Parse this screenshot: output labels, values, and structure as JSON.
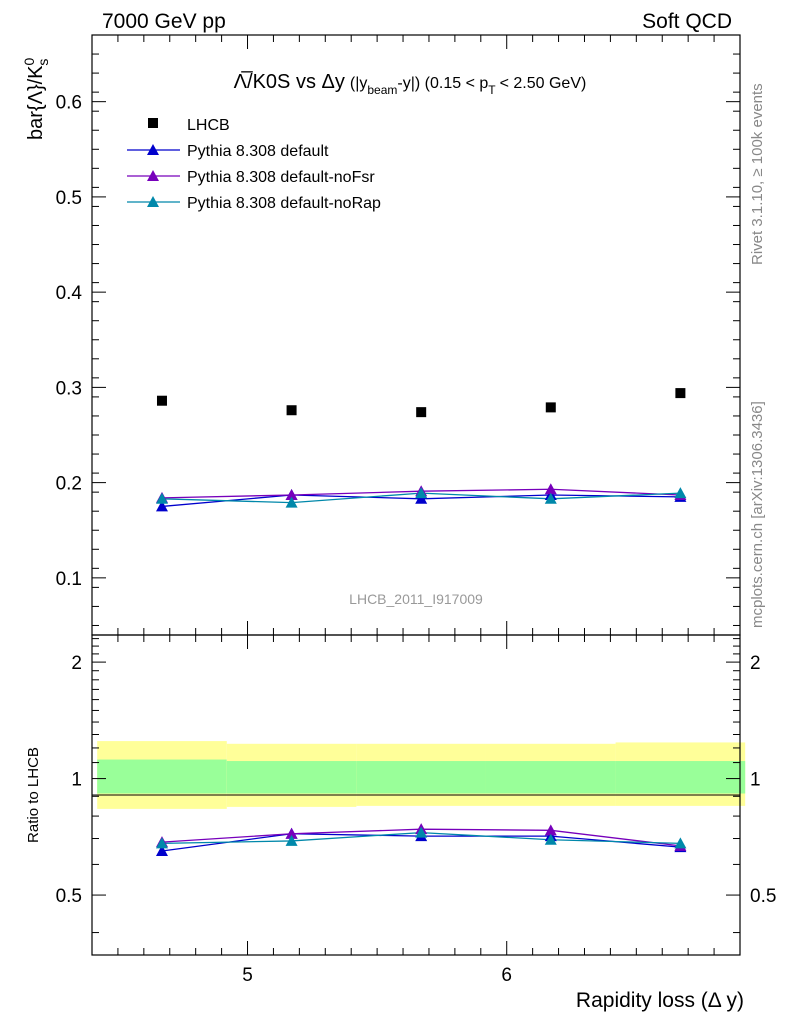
{
  "header": {
    "left": "7000 GeV pp",
    "right": "Soft QCD"
  },
  "side_text": {
    "rivet": "Rivet 3.1.10, ≥ 100k events",
    "mcplots": "mcplots.cern.ch [arXiv:1306.3436]"
  },
  "colors": {
    "data": "#000000",
    "default": "#0000cc",
    "noFsr": "#7700bb",
    "noRap": "#0088aa",
    "band_inner": "#99ff99",
    "band_outer": "#ffff99"
  },
  "chart_data": [
    {
      "type": "scatter",
      "title_main": "Λ̅/K0S vs Δy",
      "title_tail": "(|y",
      "title_sub1": "beam",
      "title_mid": "-y|) (0.15 < p",
      "title_sub2": "T",
      "title_end": "< 2.50 GeV)",
      "ylabel": "bar{Λ}/K",
      "ylabel_sup": "0",
      "ylabel_sub": "s",
      "xlim": [
        4.4,
        6.9
      ],
      "ylim": [
        0.04,
        0.67
      ],
      "yticks": [
        0.1,
        0.2,
        0.3,
        0.4,
        0.5,
        0.6
      ],
      "ytick_labels": [
        "0.1",
        "0.2",
        "0.3",
        "0.4",
        "0.5",
        "0.6"
      ],
      "watermark": "LHCB_2011_I917009",
      "legend_position": "top-left",
      "x": [
        4.67,
        5.17,
        5.67,
        6.17,
        6.67
      ],
      "series": [
        {
          "name": "LHCB",
          "kind": "data",
          "values": [
            0.286,
            0.276,
            0.274,
            0.279,
            0.294
          ]
        },
        {
          "name": "Pythia 8.308 default",
          "kind": "mc",
          "values": [
            0.175,
            0.187,
            0.183,
            0.187,
            0.185
          ]
        },
        {
          "name": "Pythia 8.308 default-noFsr",
          "kind": "mc",
          "values": [
            0.184,
            0.187,
            0.191,
            0.193,
            0.187
          ]
        },
        {
          "name": "Pythia 8.308 default-noRap",
          "kind": "mc",
          "values": [
            0.183,
            0.179,
            0.189,
            0.183,
            0.189
          ]
        }
      ]
    },
    {
      "type": "line",
      "ylabel": "Ratio to LHCB",
      "xlabel": "Rapidity loss (Δ y)",
      "ylim": [
        0.35,
        2.35
      ],
      "log_y": true,
      "yticks": [
        0.5,
        1,
        2
      ],
      "ytick_labels": [
        "0.5",
        "1",
        "2"
      ],
      "xticks": [
        5,
        6
      ],
      "xtick_labels": [
        "5",
        "6"
      ],
      "bands": [
        {
          "x": [
            4.42,
            4.92
          ],
          "inner": [
            0.915,
            1.12
          ],
          "outer": [
            0.835,
            1.25
          ]
        },
        {
          "x": [
            4.92,
            5.42
          ],
          "inner": [
            0.915,
            1.11
          ],
          "outer": [
            0.845,
            1.23
          ]
        },
        {
          "x": [
            5.42,
            5.92
          ],
          "inner": [
            0.915,
            1.11
          ],
          "outer": [
            0.85,
            1.23
          ]
        },
        {
          "x": [
            5.92,
            6.42
          ],
          "inner": [
            0.915,
            1.11
          ],
          "outer": [
            0.85,
            1.23
          ]
        },
        {
          "x": [
            6.42,
            6.92
          ],
          "inner": [
            0.915,
            1.11
          ],
          "outer": [
            0.85,
            1.24
          ]
        }
      ],
      "series": [
        {
          "name": "Pythia 8.308 default",
          "values": [
            0.65,
            0.72,
            0.71,
            0.71,
            0.665
          ]
        },
        {
          "name": "Pythia 8.308 default-noFsr",
          "values": [
            0.685,
            0.72,
            0.74,
            0.735,
            0.67
          ]
        },
        {
          "name": "Pythia 8.308 default-noRap",
          "values": [
            0.68,
            0.69,
            0.725,
            0.695,
            0.68
          ]
        }
      ]
    }
  ]
}
